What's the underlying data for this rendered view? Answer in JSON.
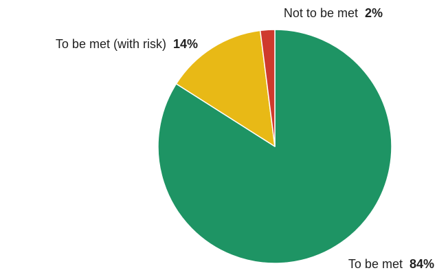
{
  "chart_data": {
    "type": "pie",
    "slices": [
      {
        "label": "To be met",
        "value": 84,
        "value_label": "84%",
        "color": "#1e9464"
      },
      {
        "label": "To be met (with risk)",
        "value": 14,
        "value_label": "14%",
        "color": "#e8b916"
      },
      {
        "label": "Not to be met",
        "value": 2,
        "value_label": "2%",
        "color": "#cf3a2d"
      }
    ],
    "start_angle_deg": 0,
    "direction": "clockwise",
    "slice_border_color": "#ffffff",
    "legend": "none"
  }
}
